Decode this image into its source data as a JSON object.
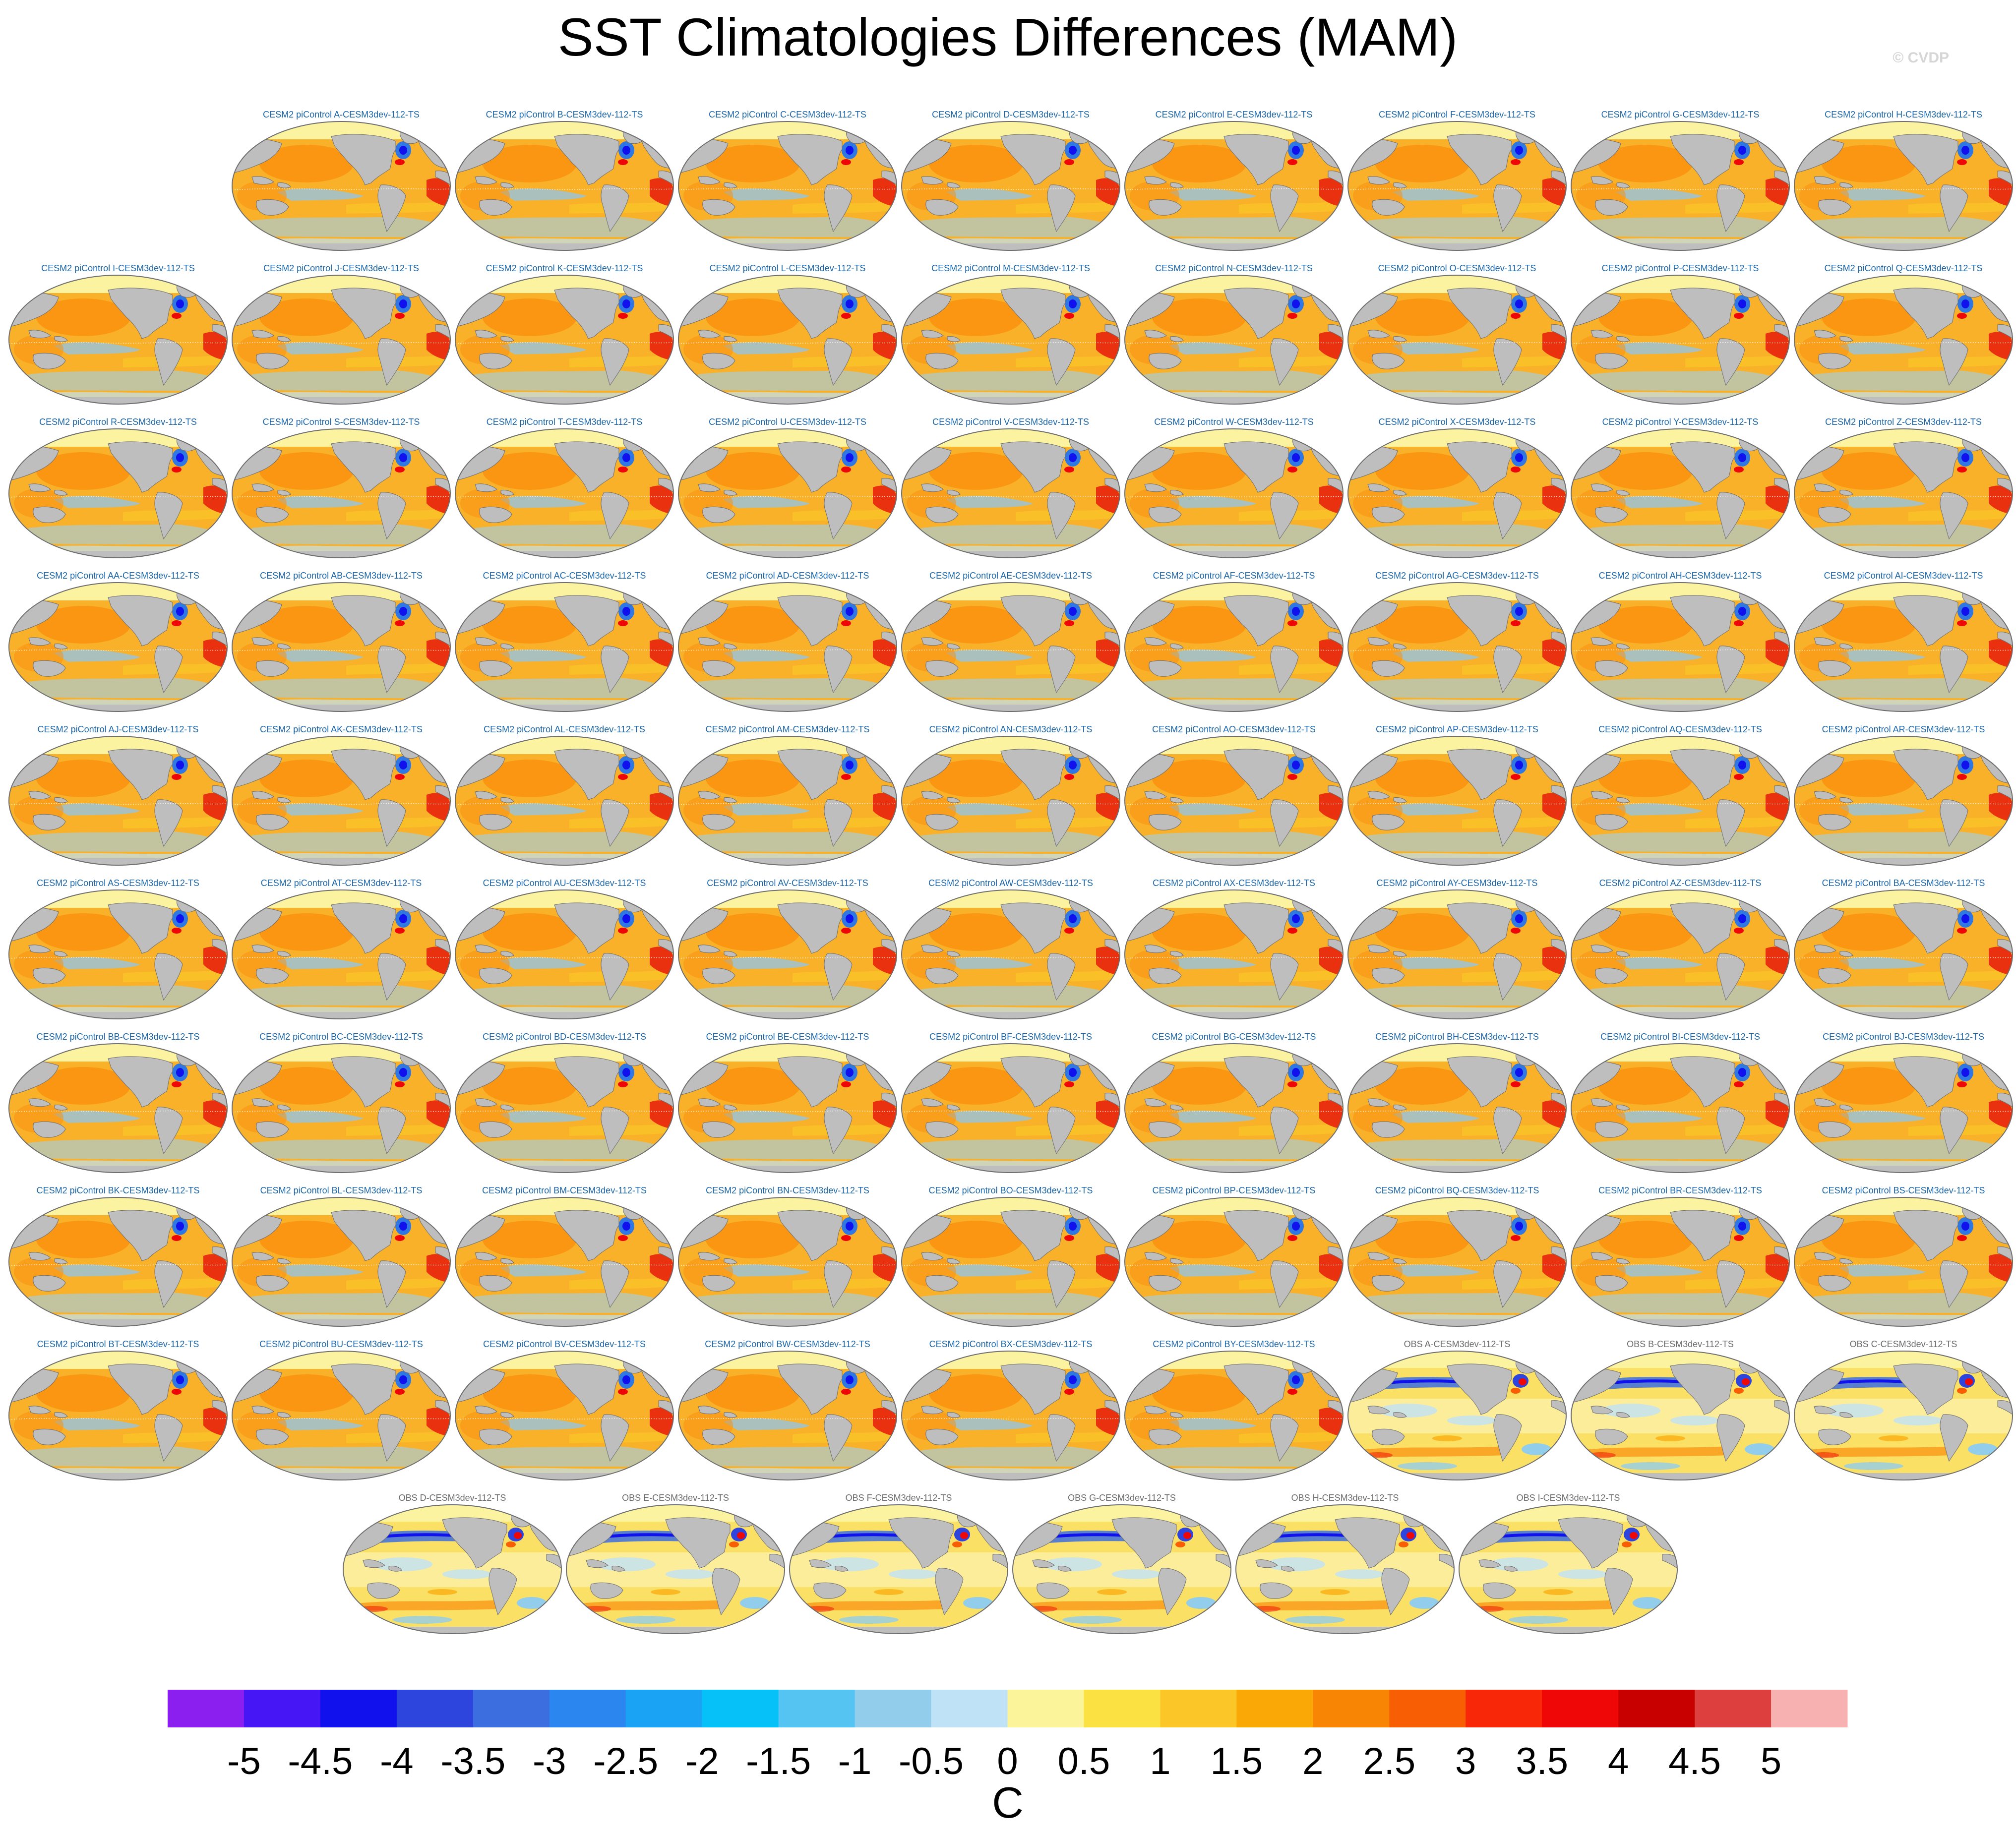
{
  "chart_data": {
    "type": "heatmap",
    "title": "SST Climatologies Differences (MAM)",
    "credit": "© CVDP",
    "panel_type": "global map, difference field",
    "panels": [
      {
        "label": "CESM2 piControl A-CESM3dev-112-TS",
        "group": "model"
      },
      {
        "label": "CESM2 piControl B-CESM3dev-112-TS",
        "group": "model"
      },
      {
        "label": "CESM2 piControl C-CESM3dev-112-TS",
        "group": "model"
      },
      {
        "label": "CESM2 piControl D-CESM3dev-112-TS",
        "group": "model"
      },
      {
        "label": "CESM2 piControl E-CESM3dev-112-TS",
        "group": "model"
      },
      {
        "label": "CESM2 piControl F-CESM3dev-112-TS",
        "group": "model"
      },
      {
        "label": "CESM2 piControl G-CESM3dev-112-TS",
        "group": "model"
      },
      {
        "label": "CESM2 piControl H-CESM3dev-112-TS",
        "group": "model"
      },
      {
        "label": "CESM2 piControl I-CESM3dev-112-TS",
        "group": "model"
      },
      {
        "label": "CESM2 piControl J-CESM3dev-112-TS",
        "group": "model"
      },
      {
        "label": "CESM2 piControl K-CESM3dev-112-TS",
        "group": "model"
      },
      {
        "label": "CESM2 piControl L-CESM3dev-112-TS",
        "group": "model"
      },
      {
        "label": "CESM2 piControl M-CESM3dev-112-TS",
        "group": "model"
      },
      {
        "label": "CESM2 piControl N-CESM3dev-112-TS",
        "group": "model"
      },
      {
        "label": "CESM2 piControl O-CESM3dev-112-TS",
        "group": "model"
      },
      {
        "label": "CESM2 piControl P-CESM3dev-112-TS",
        "group": "model"
      },
      {
        "label": "CESM2 piControl Q-CESM3dev-112-TS",
        "group": "model"
      },
      {
        "label": "CESM2 piControl R-CESM3dev-112-TS",
        "group": "model"
      },
      {
        "label": "CESM2 piControl S-CESM3dev-112-TS",
        "group": "model"
      },
      {
        "label": "CESM2 piControl T-CESM3dev-112-TS",
        "group": "model"
      },
      {
        "label": "CESM2 piControl U-CESM3dev-112-TS",
        "group": "model"
      },
      {
        "label": "CESM2 piControl V-CESM3dev-112-TS",
        "group": "model"
      },
      {
        "label": "CESM2 piControl W-CESM3dev-112-TS",
        "group": "model"
      },
      {
        "label": "CESM2 piControl X-CESM3dev-112-TS",
        "group": "model"
      },
      {
        "label": "CESM2 piControl Y-CESM3dev-112-TS",
        "group": "model"
      },
      {
        "label": "CESM2 piControl Z-CESM3dev-112-TS",
        "group": "model"
      },
      {
        "label": "CESM2 piControl AA-CESM3dev-112-TS",
        "group": "model"
      },
      {
        "label": "CESM2 piControl AB-CESM3dev-112-TS",
        "group": "model"
      },
      {
        "label": "CESM2 piControl AC-CESM3dev-112-TS",
        "group": "model"
      },
      {
        "label": "CESM2 piControl AD-CESM3dev-112-TS",
        "group": "model"
      },
      {
        "label": "CESM2 piControl AE-CESM3dev-112-TS",
        "group": "model"
      },
      {
        "label": "CESM2 piControl AF-CESM3dev-112-TS",
        "group": "model"
      },
      {
        "label": "CESM2 piControl AG-CESM3dev-112-TS",
        "group": "model"
      },
      {
        "label": "CESM2 piControl AH-CESM3dev-112-TS",
        "group": "model"
      },
      {
        "label": "CESM2 piControl AI-CESM3dev-112-TS",
        "group": "model"
      },
      {
        "label": "CESM2 piControl AJ-CESM3dev-112-TS",
        "group": "model"
      },
      {
        "label": "CESM2 piControl AK-CESM3dev-112-TS",
        "group": "model"
      },
      {
        "label": "CESM2 piControl AL-CESM3dev-112-TS",
        "group": "model"
      },
      {
        "label": "CESM2 piControl AM-CESM3dev-112-TS",
        "group": "model"
      },
      {
        "label": "CESM2 piControl AN-CESM3dev-112-TS",
        "group": "model"
      },
      {
        "label": "CESM2 piControl AO-CESM3dev-112-TS",
        "group": "model"
      },
      {
        "label": "CESM2 piControl AP-CESM3dev-112-TS",
        "group": "model"
      },
      {
        "label": "CESM2 piControl AQ-CESM3dev-112-TS",
        "group": "model"
      },
      {
        "label": "CESM2 piControl AR-CESM3dev-112-TS",
        "group": "model"
      },
      {
        "label": "CESM2 piControl AS-CESM3dev-112-TS",
        "group": "model"
      },
      {
        "label": "CESM2 piControl AT-CESM3dev-112-TS",
        "group": "model"
      },
      {
        "label": "CESM2 piControl AU-CESM3dev-112-TS",
        "group": "model"
      },
      {
        "label": "CESM2 piControl AV-CESM3dev-112-TS",
        "group": "model"
      },
      {
        "label": "CESM2 piControl AW-CESM3dev-112-TS",
        "group": "model"
      },
      {
        "label": "CESM2 piControl AX-CESM3dev-112-TS",
        "group": "model"
      },
      {
        "label": "CESM2 piControl AY-CESM3dev-112-TS",
        "group": "model"
      },
      {
        "label": "CESM2 piControl AZ-CESM3dev-112-TS",
        "group": "model"
      },
      {
        "label": "CESM2 piControl BA-CESM3dev-112-TS",
        "group": "model"
      },
      {
        "label": "CESM2 piControl BB-CESM3dev-112-TS",
        "group": "model"
      },
      {
        "label": "CESM2 piControl BC-CESM3dev-112-TS",
        "group": "model"
      },
      {
        "label": "CESM2 piControl BD-CESM3dev-112-TS",
        "group": "model"
      },
      {
        "label": "CESM2 piControl BE-CESM3dev-112-TS",
        "group": "model"
      },
      {
        "label": "CESM2 piControl BF-CESM3dev-112-TS",
        "group": "model"
      },
      {
        "label": "CESM2 piControl BG-CESM3dev-112-TS",
        "group": "model"
      },
      {
        "label": "CESM2 piControl BH-CESM3dev-112-TS",
        "group": "model"
      },
      {
        "label": "CESM2 piControl BI-CESM3dev-112-TS",
        "group": "model"
      },
      {
        "label": "CESM2 piControl BJ-CESM3dev-112-TS",
        "group": "model"
      },
      {
        "label": "CESM2 piControl BK-CESM3dev-112-TS",
        "group": "model"
      },
      {
        "label": "CESM2 piControl BL-CESM3dev-112-TS",
        "group": "model"
      },
      {
        "label": "CESM2 piControl BM-CESM3dev-112-TS",
        "group": "model"
      },
      {
        "label": "CESM2 piControl BN-CESM3dev-112-TS",
        "group": "model"
      },
      {
        "label": "CESM2 piControl BO-CESM3dev-112-TS",
        "group": "model"
      },
      {
        "label": "CESM2 piControl BP-CESM3dev-112-TS",
        "group": "model"
      },
      {
        "label": "CESM2 piControl BQ-CESM3dev-112-TS",
        "group": "model"
      },
      {
        "label": "CESM2 piControl BR-CESM3dev-112-TS",
        "group": "model"
      },
      {
        "label": "CESM2 piControl BS-CESM3dev-112-TS",
        "group": "model"
      },
      {
        "label": "CESM2 piControl BT-CESM3dev-112-TS",
        "group": "model"
      },
      {
        "label": "CESM2 piControl BU-CESM3dev-112-TS",
        "group": "model"
      },
      {
        "label": "CESM2 piControl BV-CESM3dev-112-TS",
        "group": "model"
      },
      {
        "label": "CESM2 piControl BW-CESM3dev-112-TS",
        "group": "model"
      },
      {
        "label": "CESM2 piControl BX-CESM3dev-112-TS",
        "group": "model"
      },
      {
        "label": "CESM2 piControl BY-CESM3dev-112-TS",
        "group": "model"
      },
      {
        "label": "OBS A-CESM3dev-112-TS",
        "group": "obs"
      },
      {
        "label": "OBS B-CESM3dev-112-TS",
        "group": "obs"
      },
      {
        "label": "OBS C-CESM3dev-112-TS",
        "group": "obs"
      },
      {
        "label": "OBS D-CESM3dev-112-TS",
        "group": "obs"
      },
      {
        "label": "OBS E-CESM3dev-112-TS",
        "group": "obs"
      },
      {
        "label": "OBS F-CESM3dev-112-TS",
        "group": "obs"
      },
      {
        "label": "OBS G-CESM3dev-112-TS",
        "group": "obs"
      },
      {
        "label": "OBS H-CESM3dev-112-TS",
        "group": "obs"
      },
      {
        "label": "OBS I-CESM3dev-112-TS",
        "group": "obs"
      }
    ],
    "colorbar": {
      "unit": "C",
      "ticks": [
        "-5",
        "-4.5",
        "-4",
        "-3.5",
        "-3",
        "-2.5",
        "-2",
        "-1.5",
        "-1",
        "-0.5",
        "0",
        "0.5",
        "1",
        "1.5",
        "2",
        "2.5",
        "3",
        "3.5",
        "4",
        "4.5",
        "5"
      ],
      "colors": [
        "#8a1ff0",
        "#4616f5",
        "#1111ee",
        "#2e45dd",
        "#3c6ee0",
        "#2c86f0",
        "#1aa3f5",
        "#06c0f8",
        "#55c4f2",
        "#92cdec",
        "#bfe2f6",
        "#fbf49a",
        "#fce142",
        "#fbc627",
        "#f9a805",
        "#f98505",
        "#f85f05",
        "#f82707",
        "#ef0707",
        "#c90000",
        "#dd3f3f",
        "#f8b1b1"
      ]
    },
    "ocean_colors": {
      "land": "#bebebe",
      "outline": "#6e6e6e",
      "warm_bg": "#f9b12a",
      "warm_mid": "#f98d0b",
      "warm_core": "#e8240c",
      "cool": "#8dc6ee",
      "cool_core": "#2f77e3",
      "ice": "#fbf3a0"
    }
  }
}
